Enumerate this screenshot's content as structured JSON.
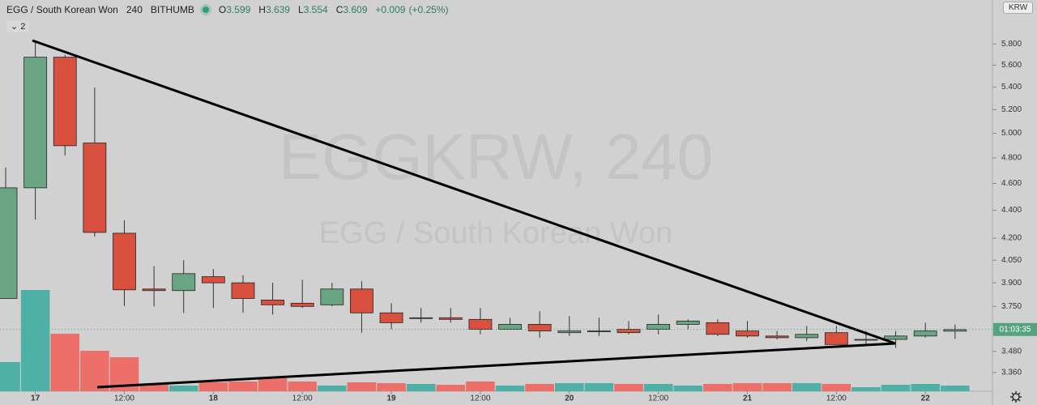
{
  "chart_data": {
    "type": "candlestick",
    "header": {
      "symbol": "EGG / South Korean Won",
      "interval": "240",
      "exchange": "BITHUMB",
      "ohlc_labels": [
        "O",
        "H",
        "L",
        "C"
      ],
      "ohlc": [
        3.599,
        3.639,
        3.554,
        3.609
      ],
      "change": "+0.009",
      "change_pct": "(+0.25%)"
    },
    "indicator_count": 2,
    "currency": "KRW",
    "watermark": {
      "title": "EGGKRW, 240",
      "subtitle": "EGG / South Korean Won"
    },
    "last_price_label": "01:03:35",
    "log_scale": true,
    "categories": [
      null,
      "17",
      null,
      null,
      "12:00",
      null,
      null,
      "18",
      null,
      null,
      "12:00",
      null,
      null,
      "19",
      null,
      null,
      "12:00",
      null,
      null,
      "20",
      null,
      null,
      "12:00",
      null,
      null,
      "21",
      null,
      null,
      "12:00",
      null,
      null,
      "22",
      null
    ],
    "open": [
      3.8,
      4.567,
      5.674,
      4.92,
      4.235,
      3.86,
      3.85,
      3.94,
      3.9,
      3.79,
      3.77,
      3.76,
      3.86,
      3.71,
      3.68,
      3.68,
      3.67,
      3.61,
      3.64,
      3.59,
      3.6,
      3.61,
      3.61,
      3.64,
      3.65,
      3.6,
      3.57,
      3.56,
      3.59,
      3.55,
      3.55,
      3.57,
      3.599
    ],
    "high": [
      4.723,
      5.835,
      5.697,
      5.396,
      4.327,
      4.01,
      4.05,
      3.99,
      3.95,
      3.9,
      3.92,
      3.9,
      3.91,
      3.77,
      3.74,
      3.74,
      3.74,
      3.68,
      3.72,
      3.69,
      3.68,
      3.66,
      3.7,
      3.67,
      3.67,
      3.66,
      3.6,
      3.63,
      3.63,
      3.6,
      3.6,
      3.65,
      3.639
    ],
    "low": [
      3.8,
      4.333,
      4.82,
      4.212,
      3.752,
      3.75,
      3.71,
      3.74,
      3.71,
      3.7,
      3.74,
      3.75,
      3.59,
      3.61,
      3.65,
      3.65,
      3.58,
      3.61,
      3.56,
      3.57,
      3.57,
      3.58,
      3.58,
      3.61,
      3.57,
      3.56,
      3.55,
      3.54,
      3.52,
      3.52,
      3.5,
      3.56,
      3.554
    ],
    "close": [
      4.567,
      5.674,
      4.898,
      4.241,
      3.855,
      3.85,
      3.96,
      3.9,
      3.8,
      3.76,
      3.75,
      3.86,
      3.71,
      3.65,
      3.68,
      3.67,
      3.61,
      3.64,
      3.6,
      3.6,
      3.6,
      3.59,
      3.64,
      3.66,
      3.58,
      3.57,
      3.56,
      3.58,
      3.52,
      3.55,
      3.57,
      3.6,
      3.609
    ],
    "volume": [
      36,
      125,
      71,
      50,
      42,
      8,
      7,
      11,
      12,
      16,
      12,
      7,
      11,
      10,
      9,
      8,
      12,
      7,
      9,
      10,
      10,
      9,
      9,
      7,
      9,
      10,
      10,
      10,
      9,
      5,
      8,
      9,
      7
    ],
    "volume_lim": [
      0,
      400
    ],
    "ylim": [
      3.257,
      6.24
    ],
    "yticks": [
      {
        "value": 3.36,
        "label": "3.360"
      },
      {
        "value": 3.48,
        "label": "3.480"
      },
      {
        "value": 3.75,
        "label": "3.750"
      },
      {
        "value": 3.9,
        "label": "3.900"
      },
      {
        "value": 4.05,
        "label": "4.050"
      },
      {
        "value": 4.2,
        "label": "4.200"
      },
      {
        "value": 4.4,
        "label": "4.400"
      },
      {
        "value": 4.6,
        "label": "4.600"
      },
      {
        "value": 4.8,
        "label": "4.800"
      },
      {
        "value": 5.0,
        "label": "5.000"
      },
      {
        "value": 5.2,
        "label": "5.200"
      },
      {
        "value": 5.4,
        "label": "5.400"
      },
      {
        "value": 5.6,
        "label": "5.600"
      },
      {
        "value": 5.8,
        "label": "5.800"
      }
    ],
    "colors": {
      "up": "#6aa583",
      "down": "#d9503f",
      "volume_up": "#4fb0a8",
      "volume_down": "#ec7069",
      "last_price": "#53a47e"
    }
  }
}
